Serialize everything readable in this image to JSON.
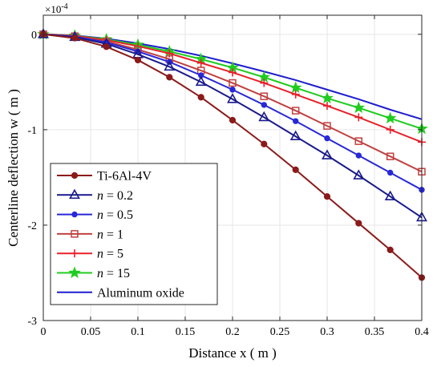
{
  "chart_data": {
    "type": "line",
    "title": "",
    "xlabel": "Distance x ( m )",
    "ylabel": "Centerline deflection  w ( m )",
    "y_exponent_label": "×10",
    "y_exponent_power": "-4",
    "xlim": [
      0,
      0.4
    ],
    "ylim": [
      -3,
      0.2
    ],
    "x_ticks": [
      0,
      0.05,
      0.1,
      0.15,
      0.2,
      0.25,
      0.3,
      0.35,
      0.4
    ],
    "x_tick_labels": [
      "0",
      "0.05",
      "0.1",
      "0.15",
      "0.2",
      "0.25",
      "0.3",
      "0.35",
      "0.4"
    ],
    "y_ticks": [
      0,
      -1,
      -2,
      -3
    ],
    "y_tick_labels": [
      "0",
      "-1",
      "-2",
      "-3"
    ],
    "grid": true,
    "legend_position": "bottom-left",
    "x": [
      0,
      0.0333,
      0.0667,
      0.1,
      0.1333,
      0.1667,
      0.2,
      0.2333,
      0.2667,
      0.3,
      0.3333,
      0.3667,
      0.4
    ],
    "series": [
      {
        "name": "Ti-6Al-4V",
        "prefix": "",
        "value": "",
        "color": "#8B1A1A",
        "marker": "circle",
        "values": [
          0,
          -0.04,
          -0.13,
          -0.27,
          -0.45,
          -0.66,
          -0.9,
          -1.15,
          -1.42,
          -1.7,
          -1.98,
          -2.26,
          -2.55
        ]
      },
      {
        "name": "n = 0.2",
        "prefix": "n",
        "value": " = 0.2",
        "color": "#1A1A8C",
        "marker": "triangle",
        "values": [
          0,
          -0.03,
          -0.1,
          -0.21,
          -0.34,
          -0.5,
          -0.68,
          -0.87,
          -1.07,
          -1.27,
          -1.48,
          -1.7,
          -1.92
        ]
      },
      {
        "name": "n = 0.5",
        "prefix": "n",
        "value": " = 0.5",
        "color": "#2828D8",
        "marker": "dot",
        "values": [
          0,
          -0.025,
          -0.085,
          -0.18,
          -0.29,
          -0.43,
          -0.58,
          -0.74,
          -0.91,
          -1.09,
          -1.27,
          -1.45,
          -1.63
        ]
      },
      {
        "name": "n = 1",
        "prefix": "n",
        "value": " = 1",
        "color": "#C04040",
        "marker": "square",
        "values": [
          0,
          -0.02,
          -0.075,
          -0.16,
          -0.26,
          -0.38,
          -0.51,
          -0.65,
          -0.8,
          -0.96,
          -1.12,
          -1.28,
          -1.44
        ]
      },
      {
        "name": "n = 5",
        "prefix": "n",
        "value": " = 5",
        "color": "#E8202A",
        "marker": "plus",
        "values": [
          0,
          -0.016,
          -0.06,
          -0.125,
          -0.2,
          -0.3,
          -0.4,
          -0.51,
          -0.63,
          -0.75,
          -0.87,
          -1.0,
          -1.13
        ]
      },
      {
        "name": "n = 15",
        "prefix": "n",
        "value": " = 15",
        "color": "#20CC20",
        "marker": "star",
        "values": [
          0,
          -0.014,
          -0.053,
          -0.11,
          -0.18,
          -0.26,
          -0.35,
          -0.45,
          -0.56,
          -0.67,
          -0.77,
          -0.88,
          -0.99
        ]
      },
      {
        "name": "Aluminum oxide",
        "prefix": "",
        "value": "",
        "color": "#1E1ECC",
        "marker": "none",
        "values": [
          0,
          -0.012,
          -0.046,
          -0.095,
          -0.155,
          -0.225,
          -0.305,
          -0.39,
          -0.48,
          -0.58,
          -0.68,
          -0.79,
          -0.89
        ]
      }
    ]
  }
}
